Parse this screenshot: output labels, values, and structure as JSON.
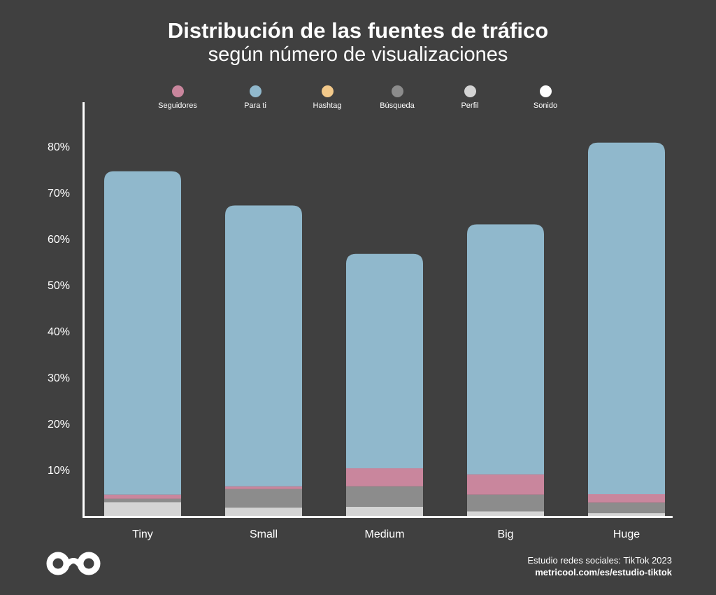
{
  "chart_data": {
    "type": "bar",
    "stacked": true,
    "title": "Distribución de las fuentes de tráfico",
    "subtitle": "según número de visualizaciones",
    "categories": [
      "Tiny",
      "Small",
      "Medium",
      "Big",
      "Huge"
    ],
    "series": [
      {
        "name": "Sonido",
        "color": "#ffffff",
        "values": [
          0,
          0,
          0,
          0,
          0
        ]
      },
      {
        "name": "Perfil",
        "color": "#d4d4d4",
        "values": [
          3.0,
          1.8,
          2.0,
          1.0,
          0.6
        ]
      },
      {
        "name": "Búsqueda",
        "color": "#8c8c8c",
        "values": [
          0.7,
          4.0,
          4.4,
          3.6,
          2.3
        ]
      },
      {
        "name": "Hashtag",
        "color": "#f3c98a",
        "values": [
          0,
          0,
          0,
          0,
          0
        ]
      },
      {
        "name": "Seguidores",
        "color": "#c9869d",
        "values": [
          0.9,
          0.6,
          3.9,
          4.4,
          1.8
        ]
      },
      {
        "name": "Para ti",
        "color": "#90b8cc",
        "values": [
          70.0,
          60.8,
          46.4,
          54.1,
          76.1
        ]
      }
    ],
    "legend_order": [
      "Seguidores",
      "Para ti",
      "Hashtag",
      "Búsqueda",
      "Perfil",
      "Sonido"
    ],
    "ytick_labels": [
      "10%",
      "20%",
      "30%",
      "40%",
      "50%",
      "60%",
      "70%",
      "80%"
    ],
    "ytick_values": [
      10,
      20,
      30,
      40,
      50,
      60,
      70,
      80
    ],
    "ylim": [
      0,
      90
    ],
    "grid": false,
    "legend_position": "top-center"
  },
  "footer": {
    "source": "Estudio redes sociales: TikTok 2023",
    "url": "metricool.com/es/estudio-tiktok"
  },
  "logo": {
    "icon": "metricool-infinity-logo"
  }
}
